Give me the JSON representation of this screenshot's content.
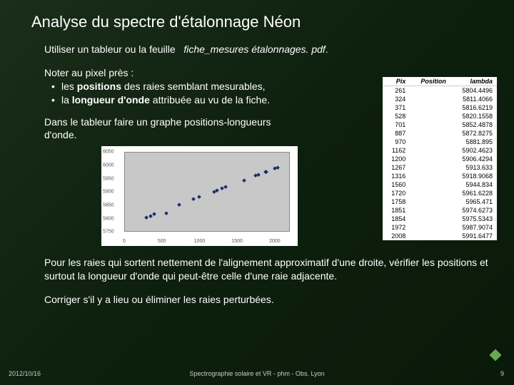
{
  "title": "Analyse du spectre d'étalonnage Néon",
  "line1_a": "Utiliser un tableur ou la feuille",
  "line1_b": "fiche_mesures étalonnages. pdf",
  "note_head": "Noter au pixel près :",
  "bullet1_a": "les ",
  "bullet1_b": "positions",
  "bullet1_c": " des raies semblant mesurables,",
  "bullet2_a": "la ",
  "bullet2_b": "longueur d'onde",
  "bullet2_c": " attribuée au vu de la fiche.",
  "graph_line": "Dans le tableur faire un graphe positions-longueurs d'onde.",
  "para2": "Pour les raies qui sortent nettement de l'alignement approximatif d'une droite, vérifier les positions et surtout la longueur d'onde qui peut-être celle d'une raie adjacente.",
  "para3": "Corriger s'il y a lieu ou éliminer les raies perturbées.",
  "footer": {
    "date": "2012/10/16",
    "source": "Spectrographie solaire et VR - phm - Obs. Lyon",
    "page": "9"
  },
  "table": {
    "headers": [
      "Pix",
      "Position",
      "lambda"
    ],
    "rows": [
      [
        "261",
        "",
        "5804.4496"
      ],
      [
        "324",
        "",
        "5811.4066"
      ],
      [
        "371",
        "",
        "5816.6219"
      ],
      [
        "528",
        "",
        "5820.1558"
      ],
      [
        "701",
        "",
        "5852.4878"
      ],
      [
        "887",
        "",
        "5872.8275"
      ],
      [
        "970",
        "",
        "5881.895"
      ],
      [
        "1162",
        "",
        "5902.4623"
      ],
      [
        "1200",
        "",
        "5906.4294"
      ],
      [
        "1267",
        "",
        "5913.633"
      ],
      [
        "1316",
        "",
        "5918.9068"
      ],
      [
        "1560",
        "",
        "5944.834"
      ],
      [
        "1720",
        "",
        "5961.6228"
      ],
      [
        "1758",
        "",
        "5965.471"
      ],
      [
        "1851",
        "",
        "5974.6273"
      ],
      [
        "1854",
        "",
        "5975.5343"
      ],
      [
        "1972",
        "",
        "5987.9074"
      ],
      [
        "2008",
        "",
        "5991.6477"
      ]
    ]
  },
  "chart": {
    "type": "scatter",
    "background_color": "#ffffff",
    "plot_bg": "#c8c8c8",
    "marker_color": "#1a2e6a",
    "marker_shape": "diamond",
    "marker_size": 4,
    "xlim": [
      0,
      2200
    ],
    "ylim": [
      5750,
      6050
    ],
    "xticks": [
      0,
      500,
      1000,
      1500,
      2000
    ],
    "yticks": [
      5750,
      5800,
      5850,
      5900,
      5950,
      6000,
      6050
    ],
    "points": [
      [
        261,
        5804
      ],
      [
        324,
        5811
      ],
      [
        371,
        5817
      ],
      [
        528,
        5820
      ],
      [
        701,
        5852
      ],
      [
        887,
        5873
      ],
      [
        970,
        5882
      ],
      [
        1162,
        5902
      ],
      [
        1200,
        5906
      ],
      [
        1267,
        5914
      ],
      [
        1316,
        5919
      ],
      [
        1560,
        5945
      ],
      [
        1720,
        5962
      ],
      [
        1758,
        5965
      ],
      [
        1851,
        5975
      ],
      [
        1854,
        5976
      ],
      [
        1972,
        5988
      ],
      [
        2008,
        5992
      ]
    ]
  }
}
